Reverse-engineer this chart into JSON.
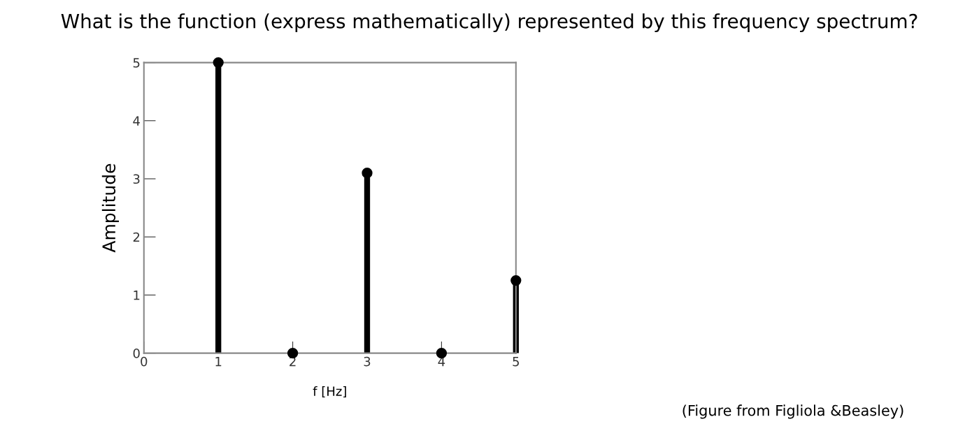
{
  "chart_data": {
    "type": "lollipop",
    "title": "What is the function (express mathematically) represented by this frequency spectrum?",
    "xlabel": "f [Hz]",
    "ylabel": "Amplitude",
    "x": [
      1,
      2,
      3,
      4,
      5
    ],
    "series": [
      {
        "color": "#000000",
        "values": [
          5,
          0,
          3.1,
          0,
          1.25
        ]
      }
    ],
    "xlim": [
      0,
      5
    ],
    "ylim": [
      0,
      5
    ],
    "xticks": [
      0,
      1,
      2,
      3,
      4,
      5
    ],
    "yticks": [
      0,
      1,
      2,
      3,
      4,
      5
    ],
    "marker": "circle",
    "legend": false,
    "annotations": [
      "(Figure from Figliola &Beasley)"
    ]
  }
}
